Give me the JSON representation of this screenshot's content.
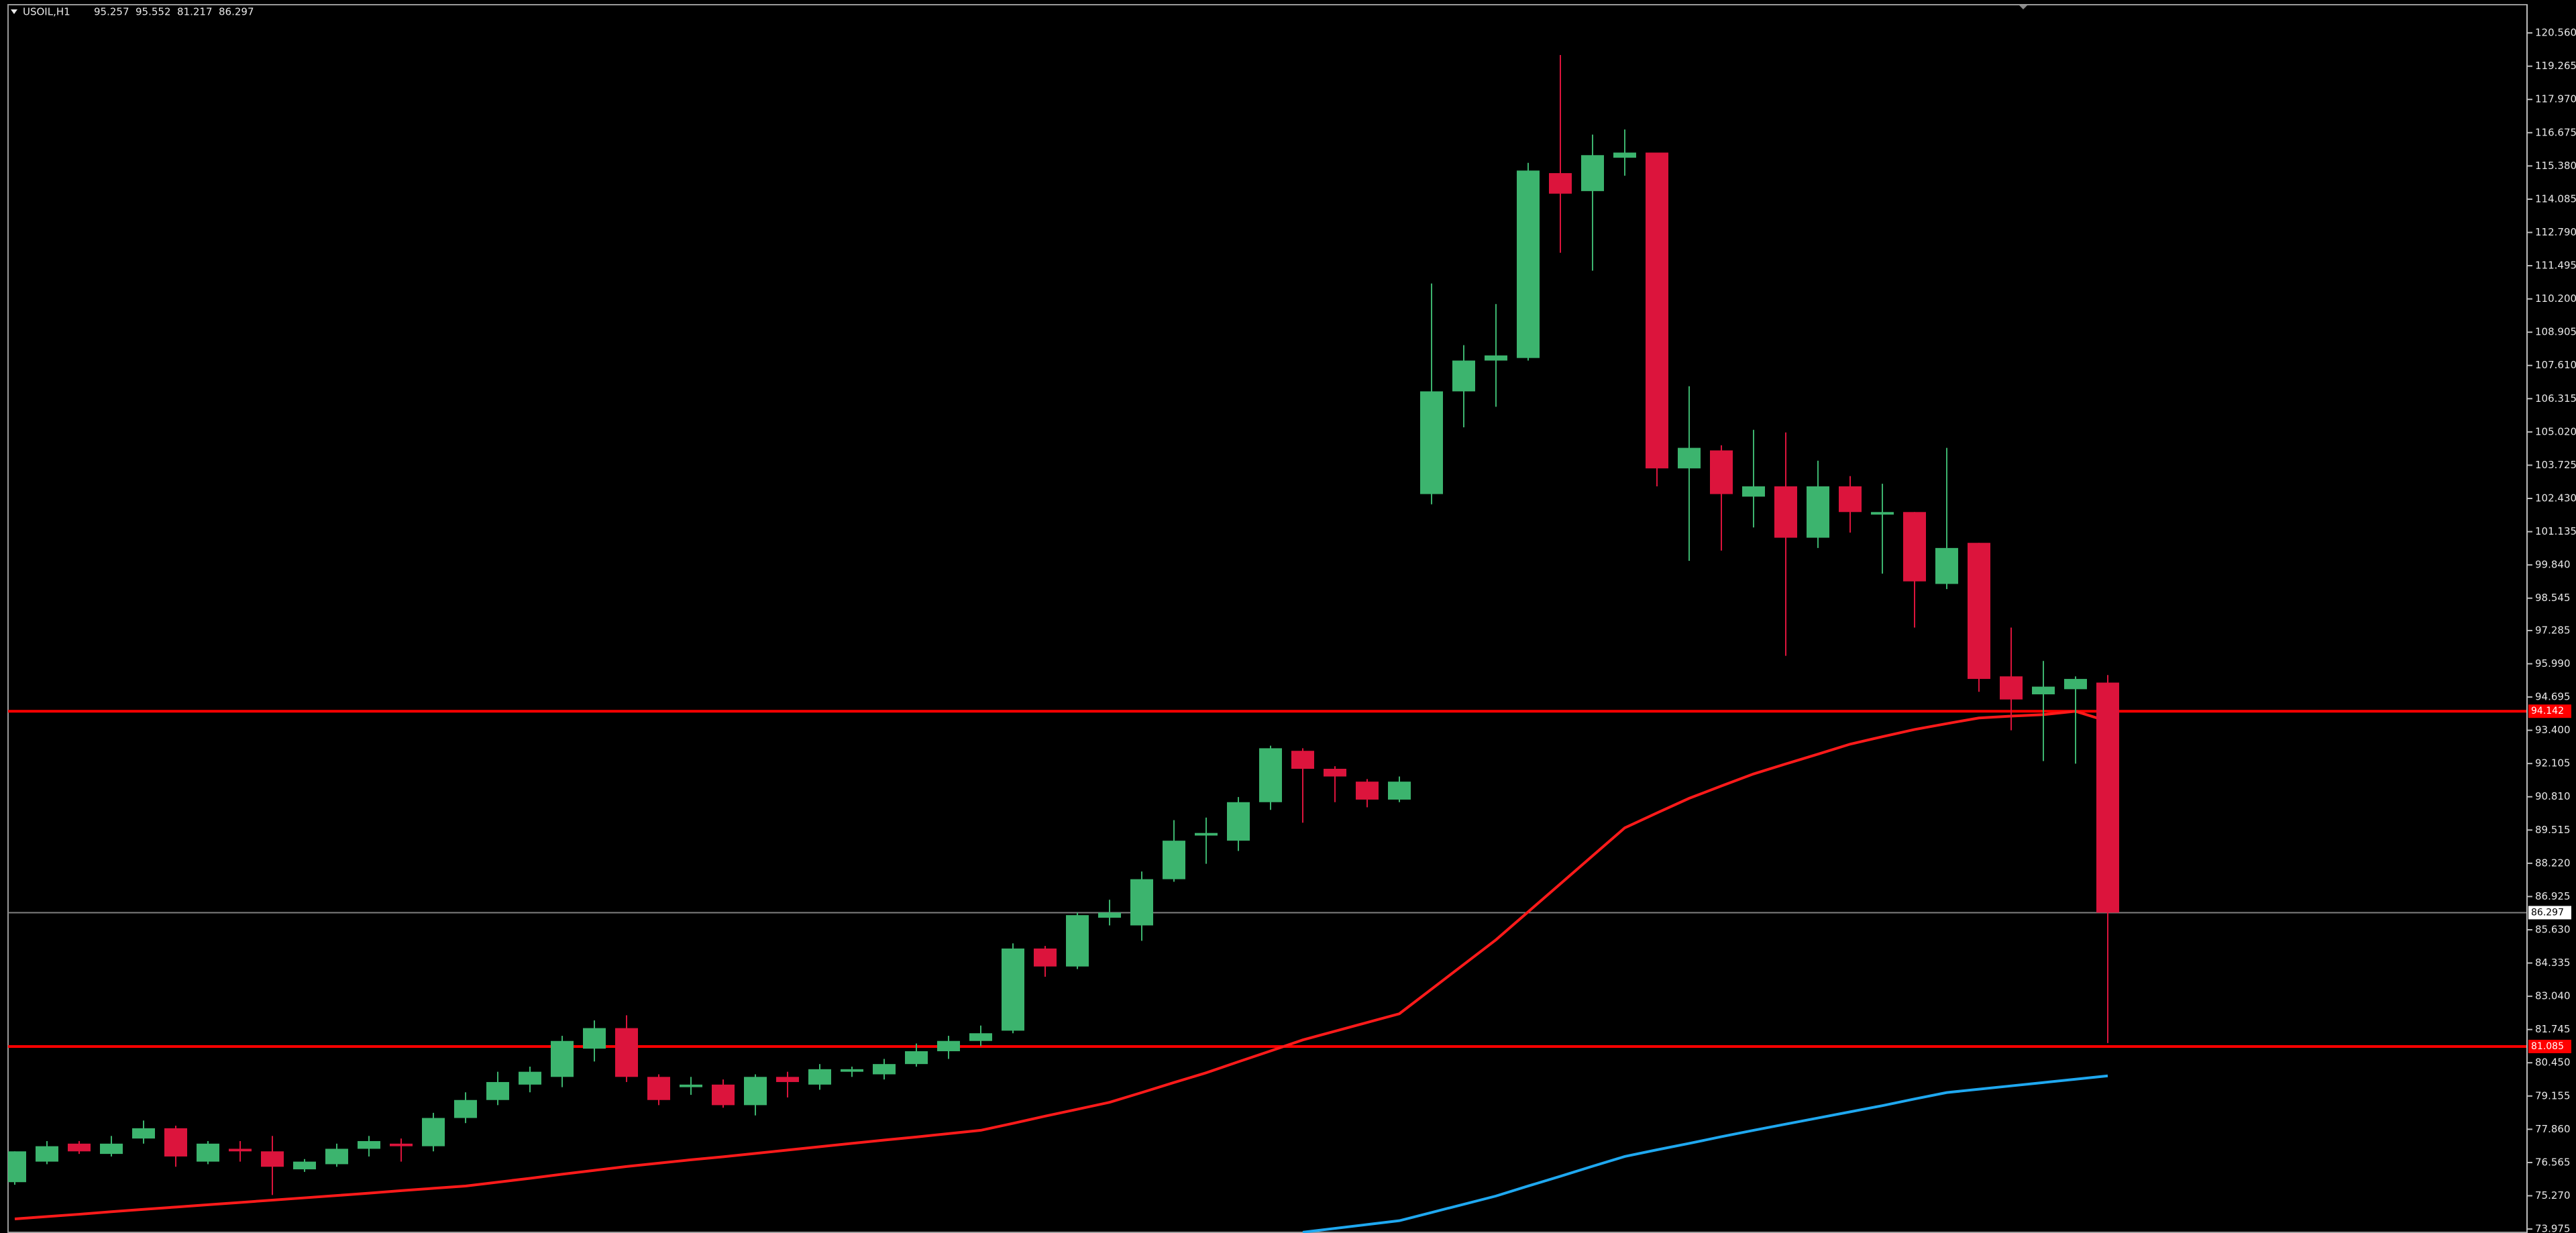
{
  "chart_data": {
    "type": "candlestick",
    "symbol": "USOIL,H1",
    "up_color": "#3cb46e",
    "down_color": "#dc143c",
    "open": [
      75.8,
      76.6,
      77.3,
      76.9,
      77.5,
      77.9,
      76.6,
      77.1,
      77.0,
      76.3,
      76.5,
      77.1,
      77.3,
      77.2,
      78.3,
      79.0,
      79.6,
      79.9,
      81.0,
      81.8,
      79.9,
      79.5,
      79.6,
      78.8,
      79.9,
      79.6,
      80.1,
      80.0,
      80.4,
      80.9,
      81.3,
      81.7,
      84.9,
      84.2,
      86.1,
      85.8,
      87.6,
      89.3,
      89.1,
      90.6,
      92.6,
      91.9,
      91.4,
      90.7,
      102.6,
      106.6,
      107.8,
      107.9,
      115.1,
      114.4,
      115.7,
      115.9,
      103.6,
      104.3,
      102.5,
      102.9,
      100.9,
      102.9,
      101.8,
      101.9,
      99.1,
      100.7,
      95.5,
      94.8,
      95.0,
      95.257
    ],
    "high": [
      77.0,
      77.4,
      77.4,
      77.6,
      78.2,
      78.0,
      77.4,
      77.4,
      77.6,
      76.7,
      77.3,
      77.6,
      77.5,
      78.5,
      79.3,
      80.1,
      80.3,
      81.5,
      82.1,
      82.3,
      80.0,
      79.9,
      79.8,
      80.0,
      80.1,
      80.4,
      80.3,
      80.6,
      81.2,
      81.5,
      81.9,
      85.1,
      85.0,
      86.3,
      86.8,
      87.9,
      89.9,
      90.0,
      90.8,
      92.8,
      92.7,
      92.0,
      91.5,
      91.6,
      110.8,
      108.4,
      110.0,
      115.5,
      119.7,
      116.6,
      116.8,
      115.9,
      106.8,
      104.5,
      105.1,
      105.0,
      103.9,
      103.3,
      103.0,
      101.9,
      104.4,
      100.7,
      97.4,
      96.1,
      95.5,
      95.552
    ],
    "low": [
      75.7,
      76.5,
      76.9,
      76.8,
      77.3,
      76.4,
      76.5,
      76.6,
      75.3,
      76.2,
      76.4,
      76.8,
      76.6,
      77.0,
      78.1,
      78.8,
      79.3,
      79.5,
      80.5,
      79.7,
      78.8,
      79.2,
      78.7,
      78.4,
      79.1,
      79.4,
      79.9,
      79.8,
      80.3,
      80.6,
      81.1,
      81.6,
      83.8,
      84.1,
      85.8,
      85.2,
      87.5,
      88.2,
      88.7,
      90.3,
      89.8,
      90.6,
      90.4,
      90.6,
      102.2,
      105.2,
      106.0,
      107.8,
      112.0,
      111.3,
      115.0,
      102.9,
      100.0,
      100.4,
      101.3,
      96.3,
      100.5,
      101.1,
      99.5,
      97.4,
      98.9,
      94.9,
      93.4,
      92.2,
      92.1,
      81.217
    ],
    "close": [
      77.0,
      77.2,
      77.0,
      77.3,
      77.9,
      76.8,
      77.3,
      77.0,
      76.4,
      76.6,
      77.1,
      77.4,
      77.2,
      78.3,
      79.0,
      79.7,
      80.1,
      81.3,
      81.8,
      79.9,
      79.0,
      79.6,
      78.8,
      79.9,
      79.7,
      80.2,
      80.2,
      80.4,
      80.9,
      81.3,
      81.6,
      84.9,
      84.2,
      86.2,
      86.3,
      87.6,
      89.1,
      89.4,
      90.6,
      92.7,
      91.9,
      91.6,
      90.7,
      91.4,
      106.6,
      107.8,
      108.0,
      115.2,
      114.3,
      115.8,
      115.9,
      103.6,
      104.4,
      102.6,
      102.9,
      100.9,
      102.9,
      101.9,
      101.9,
      99.2,
      100.5,
      95.4,
      94.6,
      95.1,
      95.4,
      86.297
    ],
    "lines": [
      {
        "color": "#ff1a1a",
        "values": [
          74.37,
          74.46,
          74.55,
          74.65,
          74.74,
          74.83,
          74.92,
          75.01,
          75.1,
          75.19,
          75.28,
          75.37,
          75.47,
          75.56,
          75.65,
          75.8,
          75.95,
          76.11,
          76.26,
          76.41,
          76.54,
          76.67,
          76.79,
          76.92,
          77.05,
          77.18,
          77.31,
          77.44,
          77.56,
          77.69,
          77.82,
          78.09,
          78.37,
          78.64,
          78.91,
          79.29,
          79.68,
          80.06,
          80.49,
          80.91,
          81.34,
          81.68,
          82.02,
          82.36,
          83.32,
          84.28,
          85.24,
          86.33,
          87.42,
          88.51,
          89.6,
          90.18,
          90.75,
          91.23,
          91.7,
          92.09,
          92.47,
          92.86,
          93.15,
          93.43,
          93.66,
          93.88,
          93.95,
          94.01,
          94.14,
          93.75
        ]
      },
      {
        "color": "#1fa8f0",
        "values": [
          null,
          null,
          null,
          null,
          null,
          null,
          null,
          null,
          null,
          null,
          null,
          null,
          null,
          null,
          null,
          null,
          null,
          null,
          null,
          null,
          null,
          null,
          null,
          null,
          null,
          null,
          null,
          null,
          null,
          null,
          null,
          null,
          null,
          null,
          null,
          null,
          null,
          null,
          null,
          null,
          73.85,
          74.0,
          74.15,
          74.3,
          74.62,
          74.94,
          75.26,
          75.65,
          76.03,
          76.42,
          76.8,
          77.06,
          77.31,
          77.57,
          77.82,
          78.06,
          78.3,
          78.54,
          78.78,
          79.04,
          79.29,
          79.42,
          79.55,
          79.68,
          79.81,
          79.94
        ]
      }
    ],
    "hlines": [
      {
        "value": 94.142,
        "color": "#ff0000"
      },
      {
        "value": 81.085,
        "color": "#ff0000"
      },
      {
        "value": 86.297,
        "color": "#808080"
      }
    ],
    "ylim": [
      73.82,
      121.66
    ],
    "yticks": [
      {
        "value": 120.56,
        "label": "120.560"
      },
      119.265,
      {
        "value": 117.97,
        "label": "117.970"
      },
      116.675,
      {
        "value": 115.38,
        "label": "115.380"
      },
      114.085,
      {
        "value": 112.79,
        "label": "112.790"
      },
      111.495,
      {
        "value": 110.2,
        "label": "110.200"
      },
      108.905,
      {
        "value": 107.61,
        "label": "107.610"
      },
      106.315,
      {
        "value": 105.02,
        "label": "105.020"
      },
      103.725,
      {
        "value": 102.43,
        "label": "102.430"
      },
      101.135,
      {
        "value": 99.84,
        "label": "99.840"
      },
      98.545,
      97.285,
      {
        "value": 95.99,
        "label": "95.990"
      },
      94.695,
      {
        "value": 93.4,
        "label": "93.400"
      },
      92.105,
      {
        "value": 90.81,
        "label": "90.810"
      },
      89.515,
      {
        "value": 88.22,
        "label": "88.220"
      },
      86.925,
      {
        "value": 85.63,
        "label": "85.630"
      },
      84.335,
      {
        "value": 83.04,
        "label": "83.040"
      },
      81.745,
      {
        "value": 80.45,
        "label": "80.450"
      },
      79.155,
      {
        "value": 77.86,
        "label": "77.860"
      },
      76.565,
      {
        "value": 75.27,
        "label": "75.270"
      },
      73.975
    ]
  }
}
